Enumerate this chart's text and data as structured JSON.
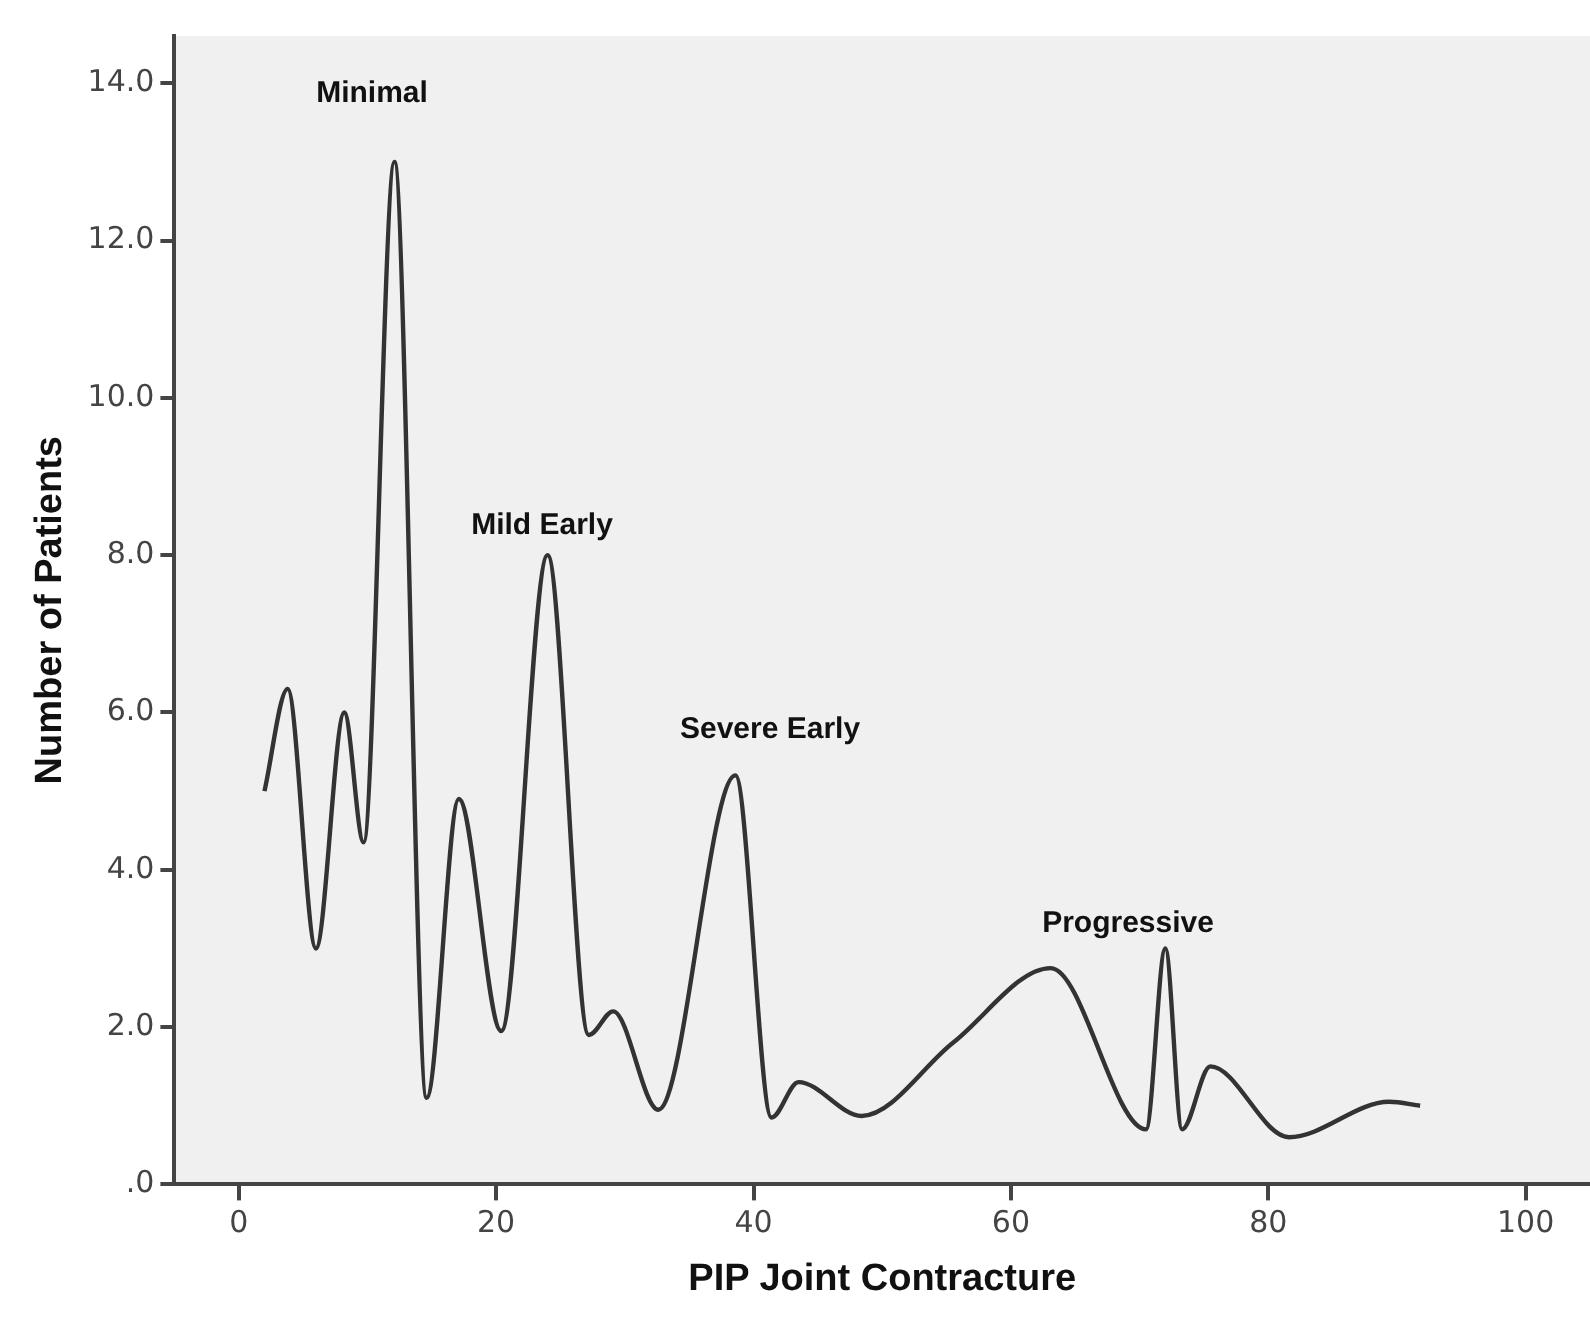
{
  "chart_data": {
    "type": "line",
    "xlabel": "PIP Joint Contracture",
    "ylabel": "Number of Patients",
    "x": [
      2,
      3.8,
      6,
      8.2,
      9.7,
      12.1,
      14.6,
      17.1,
      20.4,
      24,
      27.2,
      29.1,
      32.6,
      38.6,
      41.4,
      43.5,
      48.4,
      55.5,
      63.1,
      70.5,
      72,
      73.3,
      75.5,
      81.6,
      89.4,
      91.8
    ],
    "series": [
      {
        "color": "#333333",
        "values": [
          5.0,
          6.3,
          3.0,
          6.0,
          4.35,
          13.0,
          1.1,
          4.9,
          1.95,
          8.0,
          1.9,
          2.2,
          0.95,
          5.2,
          0.85,
          1.3,
          0.87,
          1.8,
          2.75,
          0.7,
          3.0,
          0.7,
          1.5,
          0.6,
          1.05,
          1.0
        ]
      }
    ],
    "xlim": [
      -5,
      105
    ],
    "xticks": [
      0,
      20,
      40,
      60,
      80,
      100
    ],
    "ylim": [
      0,
      14.6
    ],
    "yticks": [
      {
        "value": 0,
        "label": ".0"
      },
      {
        "value": 2,
        "label": "2.0"
      },
      {
        "value": 4,
        "label": "4.0"
      },
      {
        "value": 6,
        "label": "6.0"
      },
      {
        "value": 8,
        "label": "8.0"
      },
      {
        "value": 10,
        "label": "10.0"
      },
      {
        "value": 12,
        "label": "12.0"
      },
      {
        "value": 14,
        "label": "14.0"
      }
    ],
    "annotations": [
      "Minimal",
      "Mild Early",
      "Severe Early",
      "Progressive"
    ],
    "grid": false,
    "legend": false,
    "marker": "none",
    "line_style": "solid"
  }
}
